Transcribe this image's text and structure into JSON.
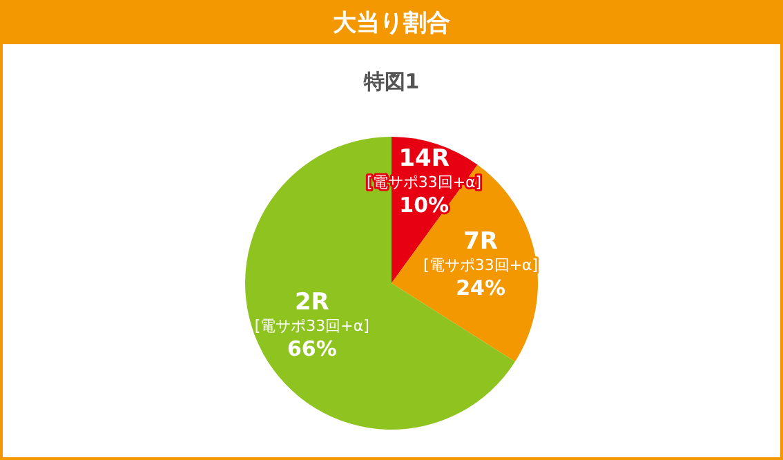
{
  "chart_data": {
    "type": "pie",
    "title": "大当り割合",
    "subtitle": "特図1",
    "categories": [
      "14R [電サポ33回+α]",
      "7R [電サポ33回+α]",
      "2R [電サポ33回+α]"
    ],
    "values": [
      10,
      24,
      66
    ],
    "value_labels": [
      "10%",
      "24%",
      "66%"
    ],
    "colors": [
      "#e60012",
      "#f39800",
      "#8fc31f"
    ],
    "legend": false
  }
}
